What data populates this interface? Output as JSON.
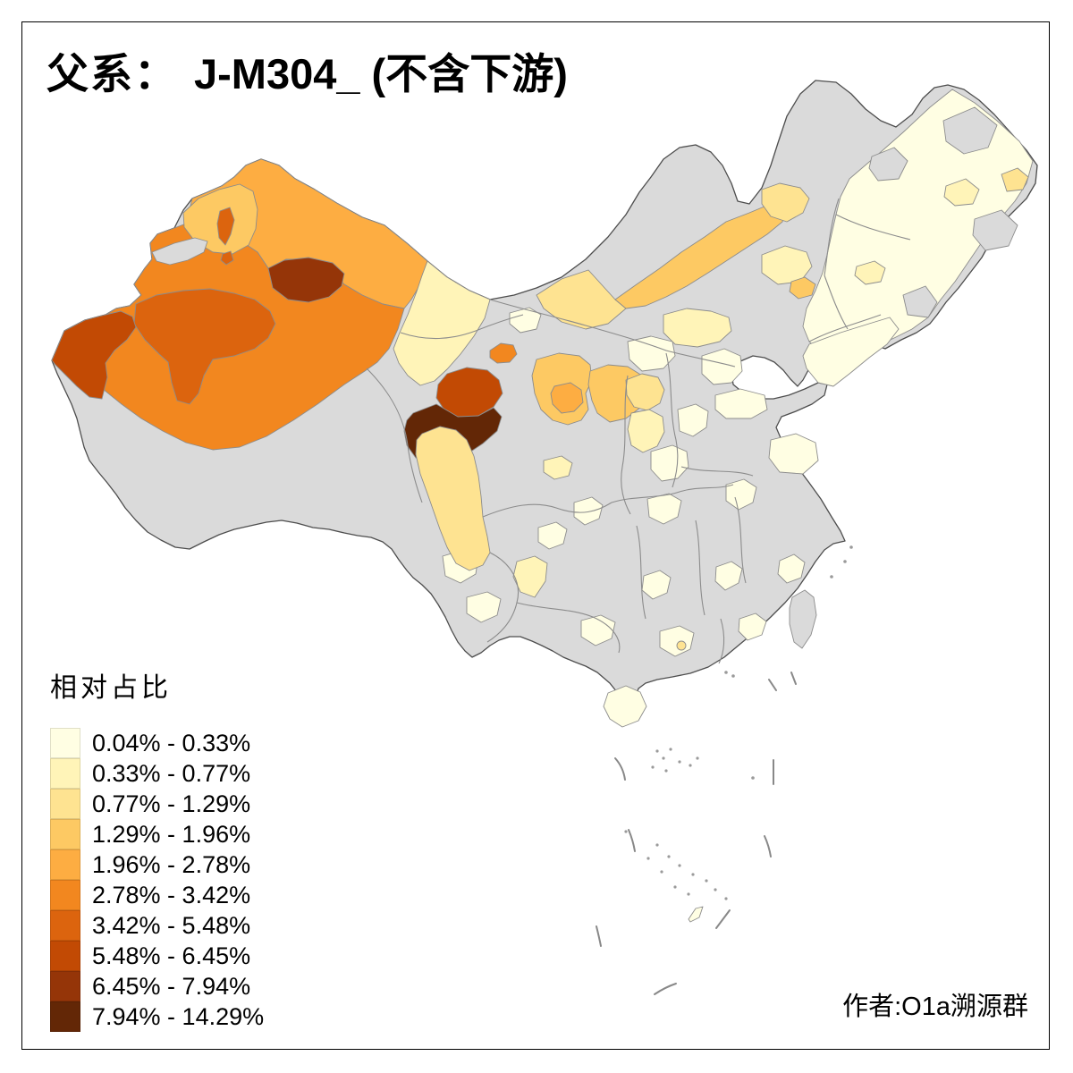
{
  "title": {
    "prefix": "父系：",
    "haplogroup": "J-M304_ (不含下游)"
  },
  "legend": {
    "title": "相对占比",
    "classes": [
      {
        "label": "0.04% - 0.33%",
        "color": "#FFFEE3"
      },
      {
        "label": "0.33% - 0.77%",
        "color": "#FFF4B8"
      },
      {
        "label": "0.77% - 1.29%",
        "color": "#FEE391"
      },
      {
        "label": "1.29% - 1.96%",
        "color": "#FDC963"
      },
      {
        "label": "1.96% - 2.78%",
        "color": "#FDAD42"
      },
      {
        "label": "2.78% - 3.42%",
        "color": "#F2871F"
      },
      {
        "label": "3.42% - 5.48%",
        "color": "#DC640E"
      },
      {
        "label": "5.48% - 6.45%",
        "color": "#C24A04"
      },
      {
        "label": "6.45% - 7.94%",
        "color": "#953508"
      },
      {
        "label": "7.94% - 14.29%",
        "color": "#632706"
      }
    ]
  },
  "attribution": "作者:O1a溯源群",
  "map": {
    "background": "#FFFFFF",
    "no_data_color": "#DADADA",
    "national_border_color": "#4D4D4D",
    "region_border_color": "#8C8C8C",
    "regions": {
      "mainland": 0,
      "xinjiang-north-band": 5,
      "xinjiang-south": 6,
      "aksu": 7,
      "kizilsu-kashgar-west": 8,
      "tacheng": 4,
      "xinjiang-gray-sliver": 0,
      "karamay": 7,
      "karamay-south": 7,
      "urumqi-changji": 9,
      "gansu-west-corridor": 2,
      "qinghai-north": 8,
      "qinghai-west": 10,
      "xining-area": 6,
      "gansu-northwest-patch": 1,
      "gansu-central": 4,
      "lanzhou": 5,
      "ningxia-shaanxi-band": 4,
      "shanxi-north": 3,
      "shanxi-south": 2,
      "inner-mongolia-band": 4,
      "inner-mongolia-west-band": 3,
      "inner-mongolia-ne": 3,
      "hohhot-area": 2,
      "ordos": 1,
      "chifeng": 2,
      "beijing-hebei": 1,
      "hebei-south": 1,
      "shandong": 1,
      "henan": 1,
      "jiangsu": 1,
      "anhui": 1,
      "hubei": 1,
      "chongqing": 1,
      "guizhou": 1,
      "hunan": 1,
      "jiangxi": 1,
      "zhejiang": 1,
      "fujian": 1,
      "guangdong": 1,
      "guangdong-dot": 3,
      "guangxi": 1,
      "yunnan-a": 1,
      "yunnan-b": 1,
      "yunnan-c": 2,
      "sichuan-west-band": 3,
      "chengdu-east": 2,
      "northeast-main": 1,
      "liaoning": 1,
      "heilongjiang-gray-1": 0,
      "heilongjiang-gray-2": 0,
      "heilongjiang-gray-3": 0,
      "changbai-gray": 0,
      "heilongjiang-spot": 2,
      "heilongjiang-east-spot": 3,
      "jilin-spot": 2,
      "liaoning-spot": 4,
      "hainan": 1,
      "taiwan": 0,
      "south-sea-islet": 1
    }
  }
}
